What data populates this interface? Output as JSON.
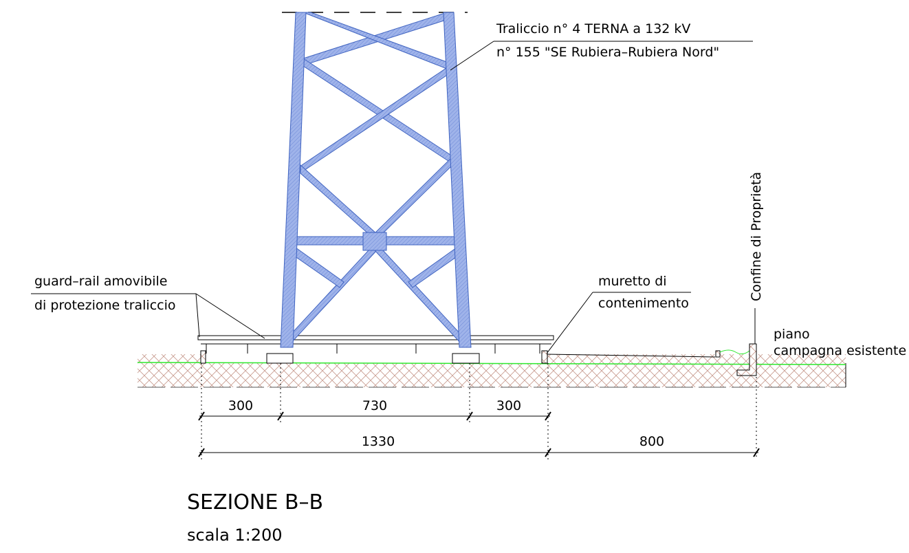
{
  "title": "SEZIONE B–B",
  "scale": "scala 1:200",
  "labels": {
    "tower_line1": "Traliccio n° 4 TERNA a 132 kV",
    "tower_line2": "n° 155 \"SE Rubiera–Rubiera Nord\"",
    "guardrail_line1": "guard–rail amovibile",
    "guardrail_line2": "di protezione traliccio",
    "wall_line1": "muretto di",
    "wall_line2": "contenimento",
    "boundary": "Confine di Proprietà",
    "ground_line1": "piano",
    "ground_line2": "campagna esistente"
  },
  "dimensions": {
    "row1": [
      "300",
      "730",
      "300"
    ],
    "row2": [
      "1330",
      "800"
    ]
  }
}
